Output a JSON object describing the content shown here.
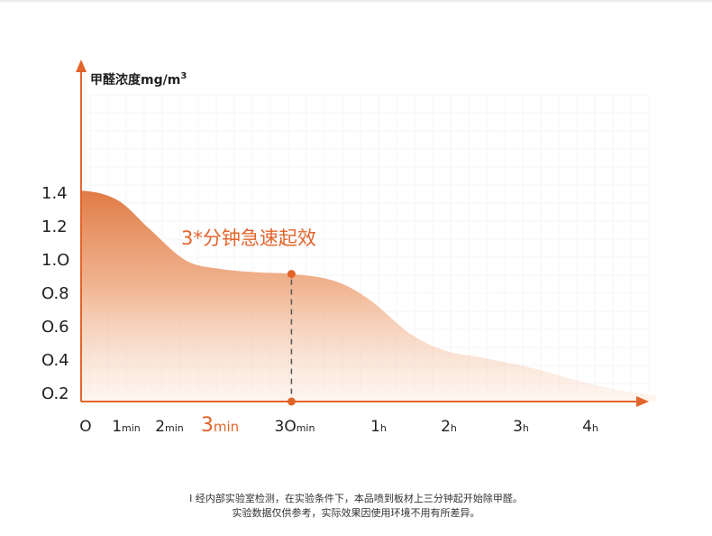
{
  "chart_data": {
    "type": "area",
    "ylabel_main": "甲醛浓度mg/m",
    "ylabel_sup": "3",
    "y_ticks": [
      "1.4",
      "1.2",
      "1.O",
      "O.8",
      "O.6",
      "O.4",
      "O.2"
    ],
    "y_tick_values": [
      1.4,
      1.2,
      1.0,
      0.8,
      0.6,
      0.4,
      0.2
    ],
    "ylim": [
      0.15,
      1.4
    ],
    "x_ticks": [
      {
        "num": "O",
        "unit": ""
      },
      {
        "num": "1",
        "unit": "min"
      },
      {
        "num": "2",
        "unit": "min"
      },
      {
        "num": "3",
        "unit": "min",
        "highlight": true
      },
      {
        "num": "3O",
        "unit": "min"
      },
      {
        "num": "1",
        "unit": "h"
      },
      {
        "num": "2",
        "unit": "h"
      },
      {
        "num": "3",
        "unit": "h"
      },
      {
        "num": "4",
        "unit": "h"
      }
    ],
    "series": [
      {
        "x": [
          0,
          0.3,
          0.6,
          1.0,
          1.5,
          2.0,
          2.5,
          3.0,
          3.6,
          4.1,
          4.7,
          5.2,
          5.7,
          6.4,
          7.0,
          7.6,
          8.2
        ],
        "y": [
          1.41,
          1.39,
          1.33,
          1.17,
          0.99,
          0.94,
          0.92,
          0.91,
          0.87,
          0.76,
          0.55,
          0.45,
          0.41,
          0.35,
          0.28,
          0.22,
          0.18
        ]
      }
    ],
    "marker": {
      "x": 3,
      "y": 0.91
    },
    "annotation": "3*分钟急速起效",
    "grid": true,
    "accent_color": "#e3642a"
  },
  "footnote": {
    "line1": "Ⅰ 经内部实验室检测，在实验条件下，本品喷到板材上三分钟起开始除甲醛。",
    "line2": "实验数据仅供参考，实际效果因使用环境不用有所差异。"
  }
}
